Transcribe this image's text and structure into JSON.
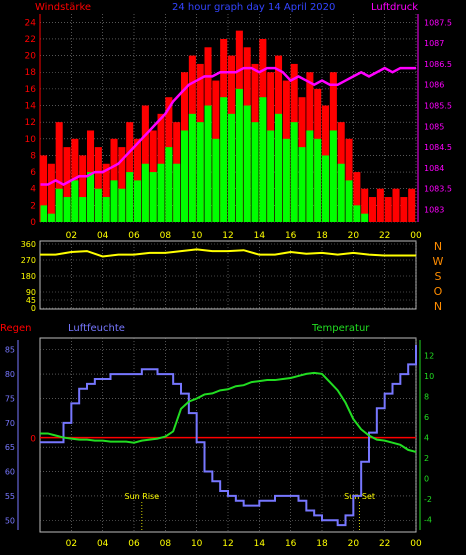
{
  "header": {
    "left_title": "Windstärke",
    "center_title": "24 hour graph day  14 April 2020",
    "right_title": "Luftdruck"
  },
  "colors": {
    "background": "#000000",
    "wind_gust": "#ff0000",
    "wind_avg": "#00ff00",
    "pressure": "#ff00ff",
    "direction": "#ffff00",
    "humidity": "#7777ff",
    "temperature": "#22dd22",
    "rain": "#ff0000",
    "grid": "#8a8a8a",
    "axis_text_left_top": "#ff0000",
    "axis_text_right_top": "#ff00ff",
    "x_tick_text": "#ffff00",
    "sun_marker": "#ffff00"
  },
  "chart_data": [
    {
      "name_key": "wind_pressure",
      "type": "bar",
      "title": "24 hour graph day  14 April 2020",
      "ylabel_left": "Windstärke",
      "ylabel_right": "Luftdruck",
      "x_ticks": [
        "02",
        "04",
        "06",
        "08",
        "10",
        "12",
        "14",
        "16",
        "18",
        "20",
        "22",
        "00"
      ],
      "y_left_ticks": [
        0,
        2,
        4,
        6,
        8,
        10,
        12,
        14,
        16,
        18,
        20,
        22,
        24
      ],
      "y_left_range": [
        0,
        25
      ],
      "y_right_ticks": [
        1083,
        1083.5,
        1084,
        1084.5,
        1085,
        1085.5,
        1086,
        1086.5,
        1087,
        1087.5
      ],
      "y_right_range": [
        1082.7,
        1087.7
      ],
      "hours": [
        0,
        0.5,
        1,
        1.5,
        2,
        2.5,
        3,
        3.5,
        4,
        4.5,
        5,
        5.5,
        6,
        6.5,
        7,
        7.5,
        8,
        8.5,
        9,
        9.5,
        10,
        10.5,
        11,
        11.5,
        12,
        12.5,
        13,
        13.5,
        14,
        14.5,
        15,
        15.5,
        16,
        16.5,
        17,
        17.5,
        18,
        18.5,
        19,
        19.5,
        20,
        20.5,
        21,
        21.5,
        22,
        22.5,
        23,
        23.5,
        24
      ],
      "gust": [
        8,
        7,
        12,
        9,
        10,
        8,
        11,
        9,
        7,
        10,
        9,
        12,
        10,
        14,
        11,
        13,
        15,
        12,
        18,
        20,
        19,
        21,
        17,
        22,
        20,
        23,
        21,
        19,
        22,
        18,
        20,
        17,
        19,
        15,
        18,
        16,
        14,
        18,
        12,
        10,
        6,
        4,
        3,
        4,
        3,
        4,
        3,
        4,
        3
      ],
      "avg": [
        2,
        1,
        4,
        3,
        5,
        3,
        6,
        4,
        3,
        5,
        4,
        6,
        5,
        7,
        6,
        7,
        9,
        7,
        11,
        13,
        12,
        14,
        10,
        15,
        13,
        16,
        14,
        12,
        15,
        11,
        13,
        10,
        12,
        9,
        11,
        10,
        8,
        11,
        7,
        5,
        2,
        1,
        0,
        0,
        0,
        0,
        0,
        0,
        0
      ],
      "pressure": [
        1083.6,
        1083.6,
        1083.7,
        1083.6,
        1083.7,
        1083.8,
        1083.8,
        1083.9,
        1083.9,
        1084.0,
        1084.1,
        1084.3,
        1084.5,
        1084.7,
        1084.9,
        1085.1,
        1085.3,
        1085.6,
        1085.8,
        1086.0,
        1086.1,
        1086.2,
        1086.2,
        1086.3,
        1086.3,
        1086.3,
        1086.4,
        1086.4,
        1086.3,
        1086.4,
        1086.4,
        1086.3,
        1086.1,
        1086.2,
        1086.1,
        1086.0,
        1086.1,
        1086.0,
        1086.0,
        1086.1,
        1086.2,
        1086.3,
        1086.2,
        1086.3,
        1086.4,
        1086.3,
        1086.4,
        1086.4,
        1086.4
      ]
    },
    {
      "name_key": "wind_direction",
      "type": "line",
      "x_ticks": [
        "02",
        "04",
        "06",
        "08",
        "10",
        "12",
        "14",
        "16",
        "18",
        "20",
        "22",
        "00"
      ],
      "y_left_ticks": [
        0,
        45,
        90,
        180,
        270,
        360
      ],
      "y_left_range": [
        0,
        360
      ],
      "y_right_labels": [
        "N",
        "W",
        "S",
        "O",
        "N"
      ],
      "hours": [
        0,
        1,
        2,
        3,
        4,
        5,
        6,
        7,
        8,
        9,
        10,
        11,
        12,
        13,
        14,
        15,
        16,
        17,
        18,
        19,
        20,
        21,
        22,
        23,
        24
      ],
      "direction": [
        300,
        300,
        315,
        320,
        290,
        300,
        300,
        310,
        310,
        320,
        330,
        320,
        320,
        325,
        300,
        300,
        315,
        305,
        310,
        300,
        310,
        300,
        295,
        295,
        295
      ]
    },
    {
      "name_key": "humidity_temperature",
      "type": "line",
      "ylabel_left": "Regen",
      "ylabel_mid": "Luftfeuchte",
      "ylabel_right": "Temperatur",
      "x_ticks": [
        "02",
        "04",
        "06",
        "08",
        "10",
        "12",
        "14",
        "16",
        "18",
        "20",
        "22",
        "00"
      ],
      "y_humidity_ticks": [
        50,
        55,
        60,
        65,
        70,
        75,
        80,
        85
      ],
      "y_humidity_range": [
        48,
        87
      ],
      "y_temp_ticks": [
        -4,
        -2,
        0,
        2,
        4,
        6,
        8,
        10,
        12
      ],
      "y_temp_range": [
        -5,
        13.5
      ],
      "rain_tick": "0",
      "sun_rise": {
        "label": "Sun Rise",
        "hour": 6.5
      },
      "sun_set": {
        "label": "Sun Set",
        "hour": 20.4
      },
      "hours": [
        0,
        0.5,
        1,
        1.5,
        2,
        2.5,
        3,
        3.5,
        4,
        4.5,
        5,
        5.5,
        6,
        6.5,
        7,
        7.5,
        8,
        8.5,
        9,
        9.5,
        10,
        10.5,
        11,
        11.5,
        12,
        12.5,
        13,
        13.5,
        14,
        14.5,
        15,
        15.5,
        16,
        16.5,
        17,
        17.5,
        18,
        18.5,
        19,
        19.5,
        20,
        20.5,
        21,
        21.5,
        22,
        22.5,
        23,
        23.5,
        24
      ],
      "humidity": [
        66,
        66,
        66,
        70,
        74,
        77,
        78,
        79,
        79,
        80,
        80,
        80,
        80,
        81,
        81,
        80,
        80,
        78,
        76,
        72,
        66,
        60,
        58,
        56,
        55,
        54,
        53,
        53,
        54,
        54,
        55,
        55,
        55,
        54,
        52,
        51,
        50,
        50,
        49,
        51,
        55,
        62,
        68,
        73,
        76,
        78,
        80,
        82,
        86
      ],
      "temperature": [
        4.4,
        4.4,
        4.2,
        4.0,
        3.9,
        3.8,
        3.8,
        3.7,
        3.7,
        3.6,
        3.6,
        3.6,
        3.5,
        3.7,
        3.8,
        3.9,
        4.1,
        4.6,
        6.8,
        7.5,
        7.8,
        8.2,
        8.3,
        8.6,
        8.7,
        9.0,
        9.1,
        9.4,
        9.5,
        9.6,
        9.6,
        9.7,
        9.8,
        10.0,
        10.2,
        10.3,
        10.2,
        9.4,
        8.6,
        7.4,
        5.8,
        4.8,
        4.2,
        3.8,
        3.7,
        3.5,
        3.3,
        2.8,
        2.6
      ]
    }
  ]
}
